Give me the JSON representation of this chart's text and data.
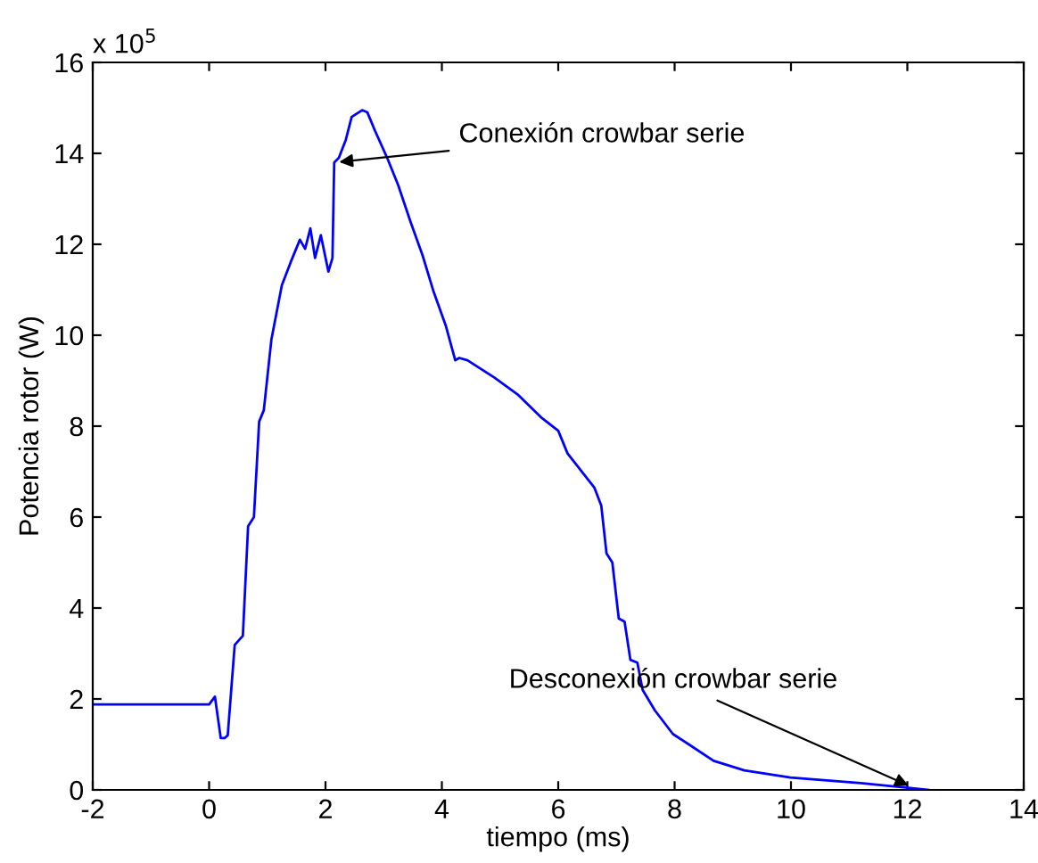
{
  "chart_data": {
    "type": "line",
    "xlabel": "tiempo (ms)",
    "ylabel": "Potencia rotor (W)",
    "xlim": [
      -2,
      14
    ],
    "xticks": [
      -2,
      0,
      2,
      4,
      6,
      8,
      10,
      12,
      14
    ],
    "ylim": [
      0,
      16
    ],
    "yticks": [
      0,
      2,
      4,
      6,
      8,
      10,
      12,
      14,
      16
    ],
    "grid": false,
    "legend": false,
    "series": [
      {
        "color": "#0000ff",
        "x": [
          -2,
          0,
          0.1,
          0.2,
          0.27,
          0.32,
          0.44,
          0.58,
          0.67,
          0.77,
          0.86,
          0.94,
          1.07,
          1.25,
          1.4,
          1.56,
          1.65,
          1.74,
          1.82,
          1.92,
          2.05,
          2.12,
          2.15,
          2.23,
          2.35,
          2.45,
          2.63,
          2.72,
          2.85,
          3.06,
          3.25,
          3.46,
          3.67,
          3.86,
          4.07,
          4.23,
          4.3,
          4.44,
          4.9,
          5.3,
          5.7,
          6.0,
          6.16,
          6.62,
          6.74,
          6.83,
          6.93,
          7.04,
          7.14,
          7.24,
          7.36,
          7.45,
          7.66,
          7.97,
          8.28,
          8.67,
          9.2,
          9.99,
          11.2,
          12.36
        ],
        "values": [
          1.88,
          1.88,
          2.05,
          1.14,
          1.14,
          1.2,
          3.19,
          3.39,
          5.8,
          6.0,
          8.1,
          8.35,
          9.9,
          11.1,
          11.6,
          12.1,
          11.9,
          12.35,
          11.7,
          12.2,
          11.4,
          11.7,
          13.8,
          13.9,
          14.3,
          14.8,
          14.95,
          14.9,
          14.5,
          13.9,
          13.3,
          12.5,
          11.75,
          10.95,
          10.2,
          9.45,
          9.5,
          9.45,
          9.07,
          8.7,
          8.2,
          7.9,
          7.4,
          6.65,
          6.25,
          5.2,
          5.0,
          3.77,
          3.7,
          2.86,
          2.8,
          2.2,
          1.75,
          1.23,
          0.97,
          0.64,
          0.43,
          0.27,
          0.15,
          0
        ]
      }
    ],
    "annotations": [
      "x 10$^{5}$",
      {
        "text": "Conexión crowbar serie",
        "x": 2.15,
        "y": 13.8
      },
      {
        "text": "Desconexión crowbar serie",
        "x": 12.1,
        "y": 0.05
      }
    ]
  }
}
